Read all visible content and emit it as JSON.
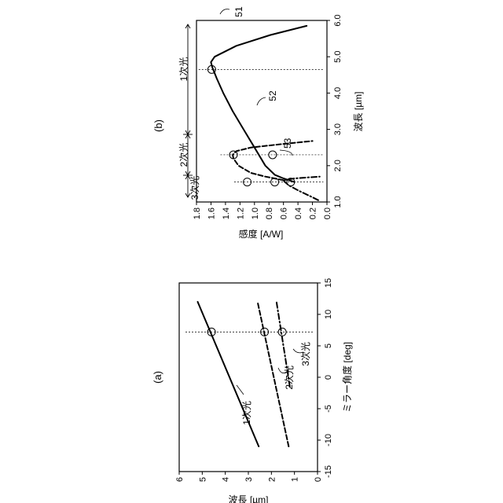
{
  "chart_data": [
    {
      "type": "line",
      "panel_label": "(a)",
      "xlabel": "ミラー角度 [deg]",
      "ylabel": "波長 [µm]",
      "xlim": [
        -15,
        15
      ],
      "ylim": [
        0,
        6
      ],
      "xticks": [
        "-15",
        "-10",
        "-5",
        "0",
        "5",
        "10",
        "15"
      ],
      "yticks": [
        "0",
        "1",
        "2",
        "3",
        "4",
        "5",
        "6"
      ],
      "series": [
        {
          "name": "1次光",
          "style": "solid",
          "x": [
            -11,
            12
          ],
          "y": [
            2.55,
            5.2
          ]
        },
        {
          "name": "2次光",
          "style": "dashed",
          "x": [
            -11,
            12
          ],
          "y": [
            1.25,
            2.6
          ]
        },
        {
          "name": "3次光",
          "style": "dashdot",
          "x": [
            -1.5,
            12
          ],
          "y": [
            1.2,
            1.78
          ]
        }
      ],
      "markers": [
        {
          "x": 7.2,
          "y": 4.6
        },
        {
          "x": 7.2,
          "y": 2.3
        },
        {
          "x": 7.2,
          "y": 1.53
        }
      ],
      "reference_line_x": 7.2
    },
    {
      "type": "line",
      "panel_label": "(b)",
      "xlabel": "波長 [µm]",
      "ylabel": "感度 [A/W]",
      "xlim": [
        1.0,
        6.0
      ],
      "ylim": [
        0.0,
        1.8
      ],
      "xticks": [
        "1.0",
        "2.0",
        "3.0",
        "4.0",
        "5.0",
        "6.0"
      ],
      "yticks": [
        "0.0",
        "0.2",
        "0.4",
        "0.6",
        "0.8",
        "1.0",
        "1.2",
        "1.4",
        "1.6",
        "1.8"
      ],
      "series": [
        {
          "name": "51",
          "style": "solid",
          "x": [
            1.55,
            1.65,
            1.75,
            2.0,
            2.5,
            3.0,
            3.5,
            4.0,
            4.4,
            4.7,
            4.85,
            5.0,
            5.3,
            5.6,
            5.85
          ],
          "y": [
            0.45,
            0.6,
            0.72,
            0.85,
            1.0,
            1.15,
            1.3,
            1.43,
            1.52,
            1.58,
            1.6,
            1.55,
            1.25,
            0.78,
            0.28
          ]
        },
        {
          "name": "52",
          "style": "dashed",
          "x": [
            1.6,
            1.7,
            1.8,
            2.0,
            2.2,
            2.3,
            2.4,
            2.5,
            2.6,
            2.68
          ],
          "y": [
            0.6,
            0.85,
            1.05,
            1.22,
            1.29,
            1.3,
            1.25,
            1.05,
            0.6,
            0.2
          ]
        },
        {
          "name": "53",
          "style": "dashdot",
          "x": [
            1.05,
            1.15,
            1.3,
            1.45,
            1.55,
            1.6,
            1.65,
            1.7
          ],
          "y": [
            0.12,
            0.22,
            0.38,
            0.52,
            0.58,
            0.6,
            0.45,
            0.1
          ]
        }
      ],
      "markers": [
        {
          "x": 4.65,
          "y": 1.59
        },
        {
          "x": 2.3,
          "y": 1.29
        },
        {
          "x": 2.3,
          "y": 0.75
        },
        {
          "x": 1.55,
          "y": 1.1
        },
        {
          "x": 1.55,
          "y": 0.72
        },
        {
          "x": 1.55,
          "y": 0.5
        }
      ],
      "band_labels": [
        "1次光",
        "2次光",
        "3次光"
      ]
    }
  ]
}
